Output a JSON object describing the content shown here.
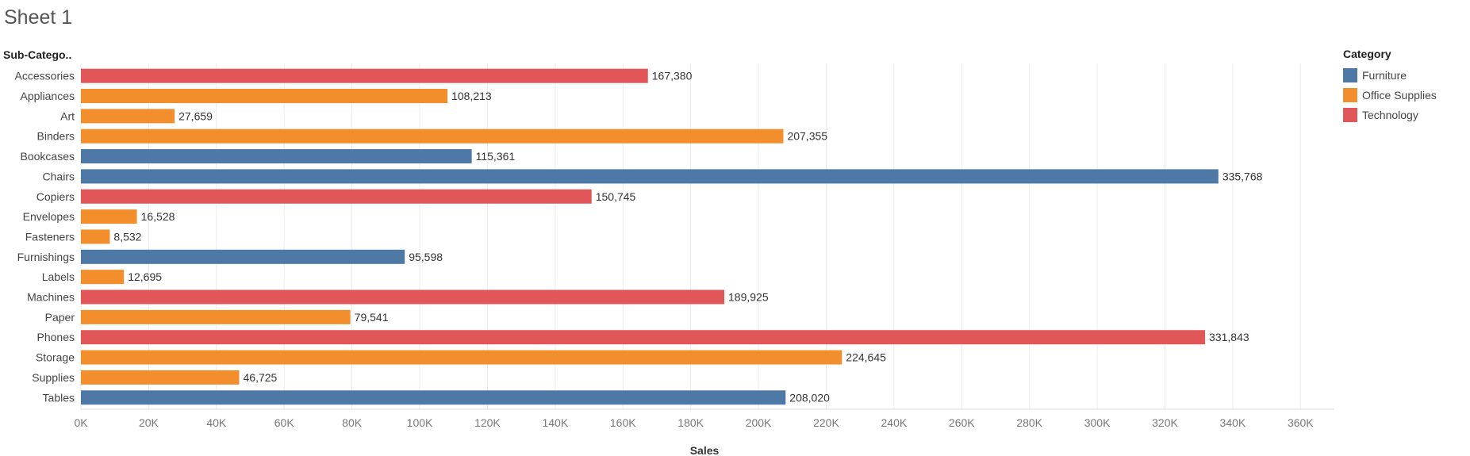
{
  "sheet": {
    "title": "Sheet 1"
  },
  "chart_data": {
    "type": "bar",
    "orientation": "horizontal",
    "row_header": "Sub-Catego..",
    "xlabel": "Sales",
    "xlim": [
      0,
      370000
    ],
    "x_ticks": [
      0,
      20000,
      40000,
      60000,
      80000,
      100000,
      120000,
      140000,
      160000,
      180000,
      200000,
      220000,
      240000,
      260000,
      280000,
      300000,
      320000,
      340000,
      360000
    ],
    "x_tick_labels": [
      "0K",
      "20K",
      "40K",
      "60K",
      "80K",
      "100K",
      "120K",
      "140K",
      "160K",
      "180K",
      "200K",
      "220K",
      "240K",
      "260K",
      "280K",
      "300K",
      "320K",
      "340K",
      "360K"
    ],
    "categories": [
      "Accessories",
      "Appliances",
      "Art",
      "Binders",
      "Bookcases",
      "Chairs",
      "Copiers",
      "Envelopes",
      "Fasteners",
      "Furnishings",
      "Labels",
      "Machines",
      "Paper",
      "Phones",
      "Storage",
      "Supplies",
      "Tables"
    ],
    "values": [
      167380,
      108213,
      27659,
      207355,
      115361,
      335768,
      150745,
      16528,
      8532,
      95598,
      12695,
      189925,
      79541,
      331843,
      224645,
      46725,
      208020
    ],
    "value_labels": [
      "167,380",
      "108,213",
      "27,659",
      "207,355",
      "115,361",
      "335,768",
      "150,745",
      "16,528",
      "8,532",
      "95,598",
      "12,695",
      "189,925",
      "79,541",
      "331,843",
      "224,645",
      "46,725",
      "208,020"
    ],
    "bar_category": [
      "Technology",
      "Office Supplies",
      "Office Supplies",
      "Office Supplies",
      "Furniture",
      "Furniture",
      "Technology",
      "Office Supplies",
      "Office Supplies",
      "Furniture",
      "Office Supplies",
      "Technology",
      "Office Supplies",
      "Technology",
      "Office Supplies",
      "Office Supplies",
      "Furniture"
    ],
    "grid": "vertical",
    "legend": {
      "title": "Category",
      "placement": "right",
      "items": [
        {
          "name": "Furniture",
          "color": "#4e79a7"
        },
        {
          "name": "Office Supplies",
          "color": "#f28e2b"
        },
        {
          "name": "Technology",
          "color": "#e15759"
        }
      ]
    }
  }
}
